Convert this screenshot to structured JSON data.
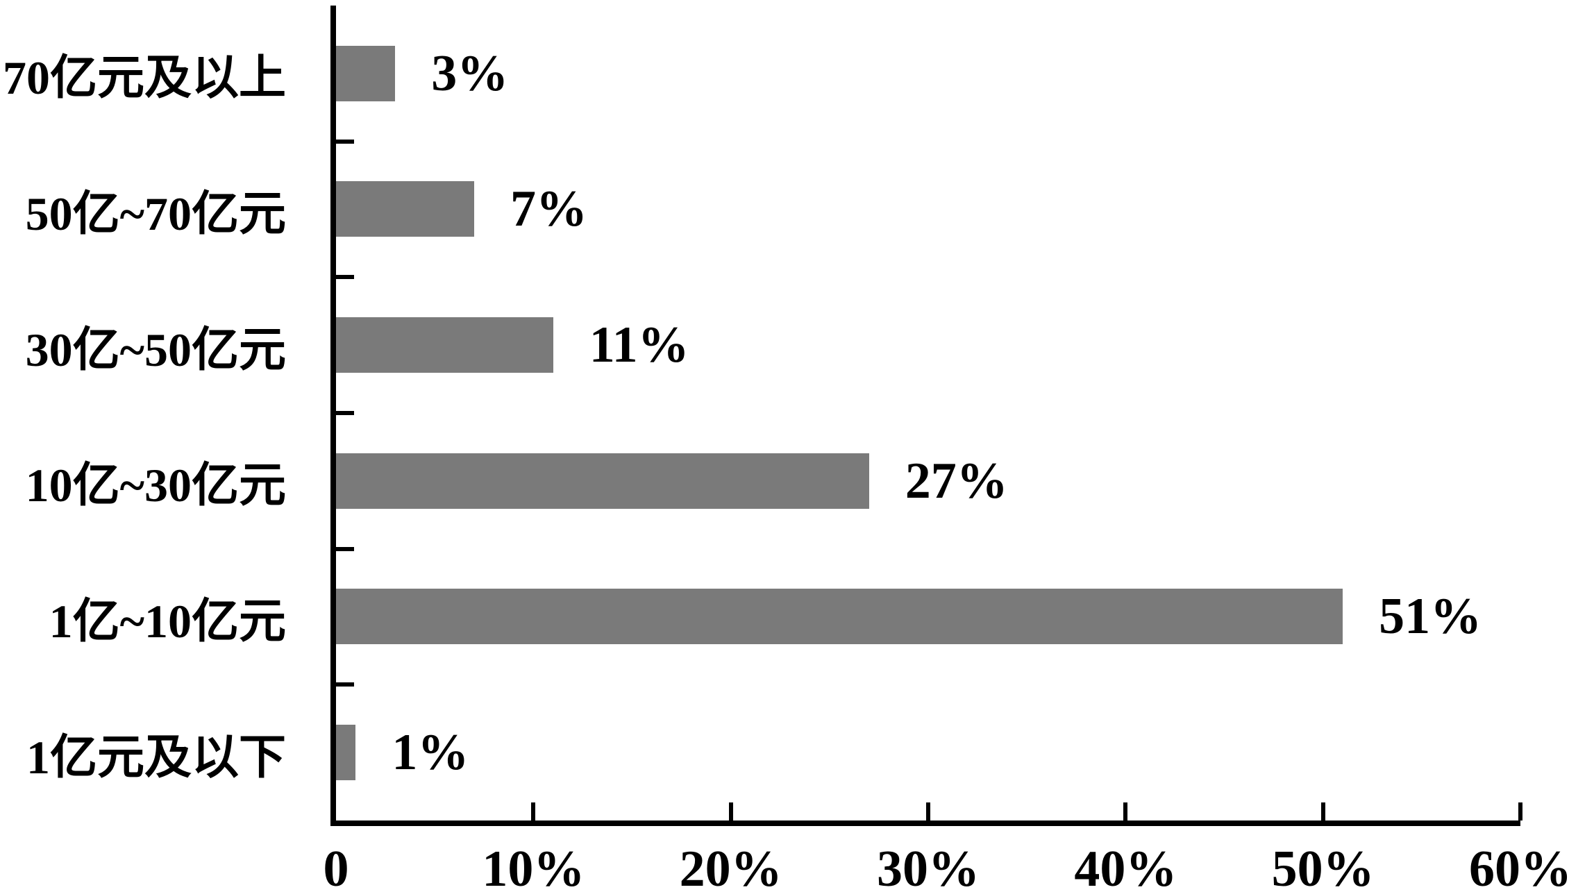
{
  "chart_data": {
    "type": "bar",
    "orientation": "horizontal",
    "title": "",
    "xlabel": "",
    "ylabel": "",
    "xlim": [
      0,
      60
    ],
    "grid": false,
    "legend": null,
    "bar_color": "#7a7a7a",
    "axis_color": "#000000",
    "categories": [
      "70亿元及以上",
      "50亿~70亿元",
      "30亿~50亿元",
      "10亿~30亿元",
      "1亿~10亿元",
      "1亿元及以下"
    ],
    "values": [
      3,
      7,
      11,
      27,
      51,
      1
    ],
    "value_labels": [
      "3%",
      "7%",
      "11%",
      "27%",
      "51%",
      "1%"
    ],
    "x_ticks": [
      {
        "value": 0,
        "label": "0"
      },
      {
        "value": 10,
        "label": "10%"
      },
      {
        "value": 20,
        "label": "20%"
      },
      {
        "value": 30,
        "label": "30%"
      },
      {
        "value": 40,
        "label": "40%"
      },
      {
        "value": 50,
        "label": "50%"
      },
      {
        "value": 60,
        "label": "60%"
      }
    ]
  }
}
